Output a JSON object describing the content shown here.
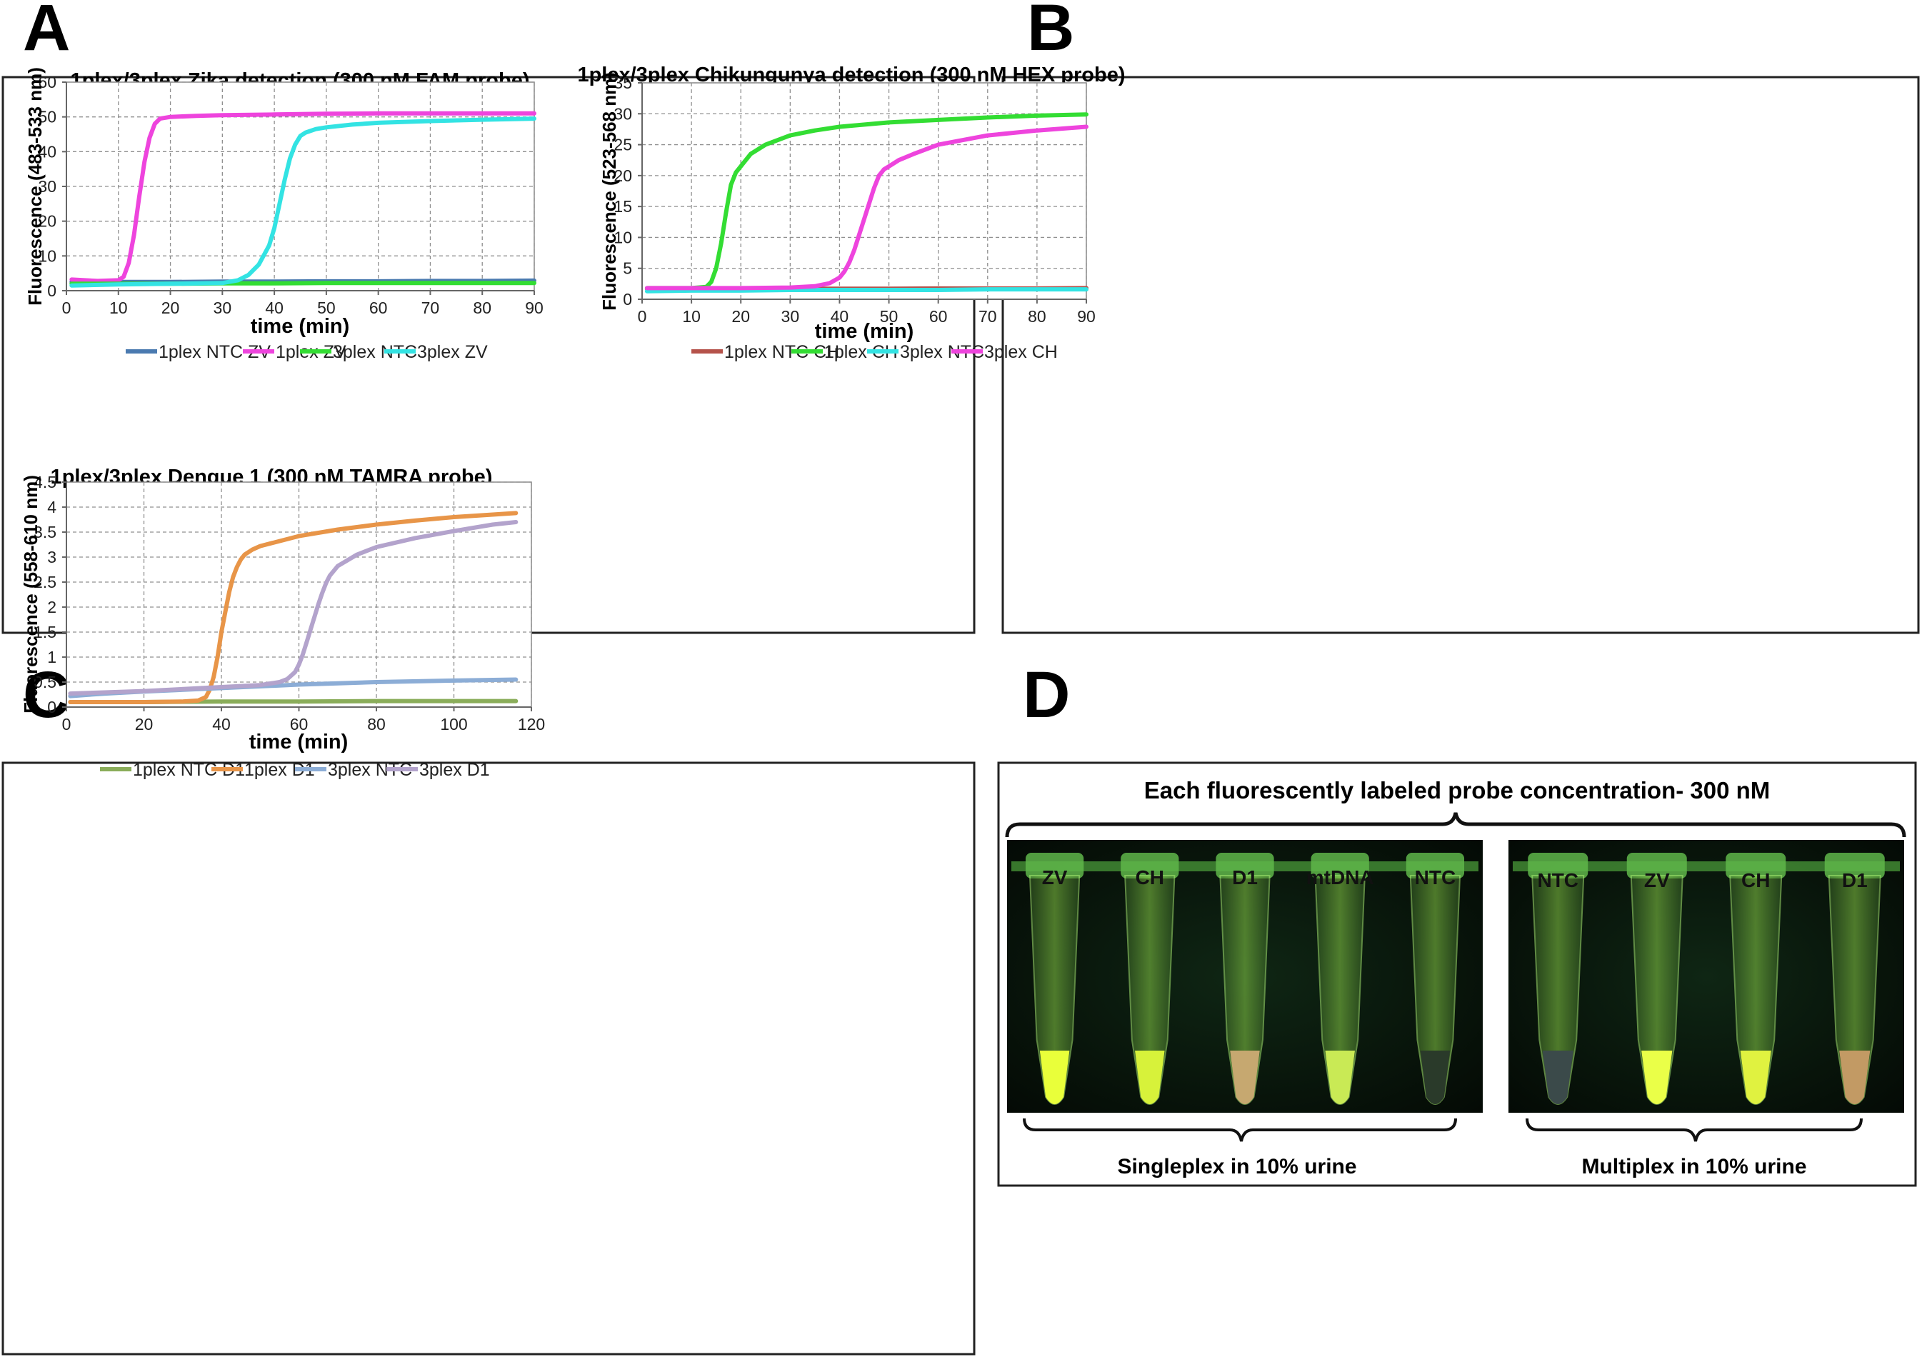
{
  "panel_letters": [
    "A",
    "B",
    "C",
    "D"
  ],
  "chart_data": [
    {
      "id": "A",
      "type": "line",
      "title": "1plex/3plex Zika detection (300 nM FAM probe)",
      "xlabel": "time (min)",
      "ylabel": "Fluorescence (483-533 nm)",
      "xlim": [
        0,
        90
      ],
      "ylim": [
        0,
        60
      ],
      "xticks": [
        0,
        10,
        20,
        30,
        40,
        50,
        60,
        70,
        80,
        90
      ],
      "yticks": [
        0,
        10,
        20,
        30,
        40,
        50,
        60
      ],
      "grid": "dashed",
      "legend": "bottom",
      "series": [
        {
          "name": "1plex NTC ZV",
          "color": "#4a7ab0",
          "x": [
            1,
            10,
            20,
            30,
            40,
            50,
            60,
            70,
            80,
            90
          ],
          "y": [
            2.5,
            2.5,
            2.5,
            2.6,
            2.6,
            2.7,
            2.7,
            2.8,
            2.8,
            2.9
          ]
        },
        {
          "name": "1plex ZV",
          "color": "#ee44dd",
          "x": [
            1,
            6,
            10,
            11,
            12,
            13,
            14,
            15,
            16,
            17,
            18,
            20,
            25,
            30,
            40,
            50,
            60,
            70,
            80,
            90
          ],
          "y": [
            3.2,
            2.8,
            3,
            4,
            8,
            16,
            27,
            37,
            44,
            48,
            49.5,
            50,
            50.3,
            50.5,
            50.7,
            50.9,
            51,
            51,
            51,
            51
          ]
        },
        {
          "name": "3plex NTC",
          "color": "#33dd33",
          "x": [
            1,
            10,
            20,
            30,
            40,
            50,
            60,
            70,
            80,
            90
          ],
          "y": [
            2,
            2,
            2,
            2.1,
            2.1,
            2.2,
            2.2,
            2.2,
            2.2,
            2.2
          ]
        },
        {
          "name": "3plex ZV",
          "color": "#33e3e3",
          "x": [
            1,
            10,
            20,
            30,
            33,
            35,
            37,
            39,
            40,
            41,
            42,
            43,
            44,
            45,
            46,
            48,
            50,
            55,
            60,
            70,
            80,
            90
          ],
          "y": [
            1.5,
            1.8,
            2,
            2.2,
            3,
            4.5,
            7.5,
            13,
            18,
            25,
            32,
            38,
            42,
            44.5,
            45.5,
            46.5,
            47,
            47.8,
            48.3,
            48.8,
            49.2,
            49.5
          ]
        }
      ]
    },
    {
      "id": "B",
      "type": "line",
      "title": "1plex/3plex Chikungunya detection (300 nM HEX probe)",
      "xlabel": "time (min)",
      "ylabel": "Fluorescence (523-568 nm)",
      "xlim": [
        0,
        90
      ],
      "ylim": [
        0,
        35
      ],
      "xticks": [
        0,
        10,
        20,
        30,
        40,
        50,
        60,
        70,
        80,
        90
      ],
      "yticks": [
        0,
        5,
        10,
        15,
        20,
        25,
        30,
        35
      ],
      "grid": "dashed",
      "legend": "bottom",
      "series": [
        {
          "name": "1plex NTC CH",
          "color": "#b5524a",
          "x": [
            1,
            10,
            20,
            30,
            40,
            50,
            60,
            70,
            80,
            90
          ],
          "y": [
            1.7,
            1.7,
            1.7,
            1.7,
            1.7,
            1.7,
            1.75,
            1.75,
            1.75,
            1.8
          ]
        },
        {
          "name": "1plex CH",
          "color": "#33dd33",
          "x": [
            1,
            10,
            13,
            14,
            15,
            16,
            17,
            18,
            19,
            20,
            21,
            22,
            25,
            30,
            35,
            40,
            50,
            60,
            70,
            80,
            90
          ],
          "y": [
            1.8,
            1.8,
            2,
            2.8,
            5,
            9,
            14,
            18.5,
            20.5,
            21.5,
            22.5,
            23.5,
            25,
            26.5,
            27.3,
            27.9,
            28.6,
            29,
            29.4,
            29.7,
            29.9
          ]
        },
        {
          "name": "3plex NTC",
          "color": "#33e3e3",
          "x": [
            1,
            10,
            20,
            30,
            40,
            50,
            60,
            70,
            80,
            90
          ],
          "y": [
            1.3,
            1.4,
            1.4,
            1.5,
            1.5,
            1.5,
            1.5,
            1.6,
            1.6,
            1.6
          ]
        },
        {
          "name": "3plex CH",
          "color": "#ee44dd",
          "x": [
            1,
            10,
            20,
            30,
            35,
            38,
            40,
            41,
            42,
            43,
            44,
            45,
            46,
            47,
            48,
            49,
            50,
            52,
            55,
            60,
            70,
            80,
            90
          ],
          "y": [
            1.8,
            1.8,
            1.8,
            1.9,
            2.1,
            2.6,
            3.5,
            4.5,
            6,
            8,
            10.5,
            13,
            15.5,
            18,
            20,
            21,
            21.5,
            22.5,
            23.5,
            25,
            26.5,
            27.3,
            27.9
          ]
        }
      ]
    },
    {
      "id": "C",
      "type": "line",
      "title": "1plex/3plex Dengue 1 (300 nM TAMRA probe)",
      "xlabel": "time (min)",
      "ylabel": "Fluorescence (558-610 nm)",
      "xlim": [
        0,
        120
      ],
      "ylim": [
        0,
        4.5
      ],
      "xticks": [
        0,
        20,
        40,
        60,
        80,
        100,
        120
      ],
      "yticks": [
        0,
        0.5,
        1,
        1.5,
        2,
        2.5,
        3,
        3.5,
        4,
        4.5
      ],
      "grid": "dashed",
      "legend": "bottom",
      "series": [
        {
          "name": "1plex NTC D1",
          "color": "#8aad5a",
          "x": [
            1,
            20,
            40,
            60,
            80,
            100,
            116
          ],
          "y": [
            0.1,
            0.1,
            0.11,
            0.11,
            0.12,
            0.12,
            0.12
          ]
        },
        {
          "name": "1plex D1",
          "color": "#e89548",
          "x": [
            1,
            20,
            30,
            34,
            36,
            37,
            38,
            39,
            40,
            41,
            42,
            43,
            44,
            45,
            46,
            48,
            50,
            55,
            60,
            70,
            80,
            90,
            100,
            110,
            116
          ],
          "y": [
            0.1,
            0.1,
            0.11,
            0.13,
            0.2,
            0.35,
            0.6,
            1,
            1.5,
            1.9,
            2.3,
            2.6,
            2.8,
            2.95,
            3.05,
            3.15,
            3.22,
            3.32,
            3.42,
            3.55,
            3.65,
            3.73,
            3.8,
            3.85,
            3.88
          ]
        },
        {
          "name": "3plex NTC",
          "color": "#8cadd6",
          "x": [
            1,
            10,
            20,
            40,
            60,
            80,
            100,
            116
          ],
          "y": [
            0.22,
            0.27,
            0.31,
            0.38,
            0.45,
            0.5,
            0.53,
            0.55
          ]
        },
        {
          "name": "3plex D1",
          "color": "#b3a3cc",
          "x": [
            1,
            20,
            40,
            50,
            55,
            57,
            59,
            60,
            61,
            62,
            63,
            64,
            65,
            66,
            67,
            68,
            70,
            75,
            80,
            90,
            100,
            110,
            116
          ],
          "y": [
            0.27,
            0.32,
            0.4,
            0.44,
            0.5,
            0.56,
            0.7,
            0.85,
            1.05,
            1.3,
            1.55,
            1.8,
            2.05,
            2.28,
            2.48,
            2.63,
            2.82,
            3.05,
            3.2,
            3.38,
            3.52,
            3.65,
            3.7
          ]
        }
      ]
    }
  ],
  "photo_panel": {
    "title": "Each fluorescently labeled probe concentration- 300 nM",
    "left_photo": {
      "tube_labels": [
        "ZV",
        "CH",
        "D1",
        "mtDNA",
        "NTC"
      ],
      "tube_glow": [
        "#e9ff3a",
        "#d7f23a",
        "#c6a870",
        "#c9ea55",
        "#2a3a2a"
      ],
      "caption": "Singleplex in 10% urine"
    },
    "right_photo": {
      "tube_labels": [
        "NTC",
        "ZV",
        "CH",
        "D1"
      ],
      "tube_glow": [
        "#3b4a4a",
        "#eaff48",
        "#e0f240",
        "#c29a64"
      ],
      "caption": "Multiplex in 10% urine"
    }
  }
}
